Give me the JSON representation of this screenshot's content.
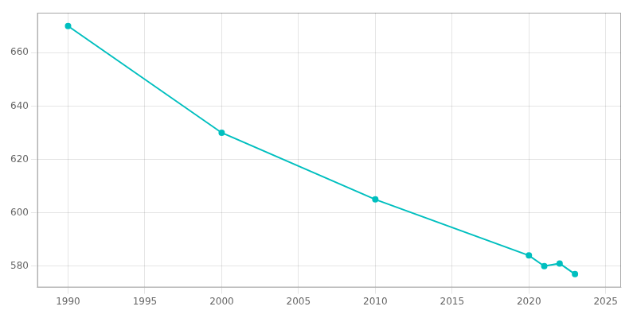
{
  "chart_data": {
    "type": "line",
    "x": [
      1990,
      2000,
      2010,
      2020,
      2021,
      2022,
      2023
    ],
    "values": [
      670,
      630,
      605,
      584,
      580,
      581,
      577
    ],
    "color": "#00BFBF",
    "marker": "circle",
    "xlim": [
      1988,
      2026
    ],
    "ylim": [
      572,
      675
    ],
    "xticks": [
      1990,
      1995,
      2000,
      2005,
      2010,
      2015,
      2020,
      2025
    ],
    "yticks": [
      580,
      600,
      620,
      640,
      660
    ],
    "grid": true
  }
}
